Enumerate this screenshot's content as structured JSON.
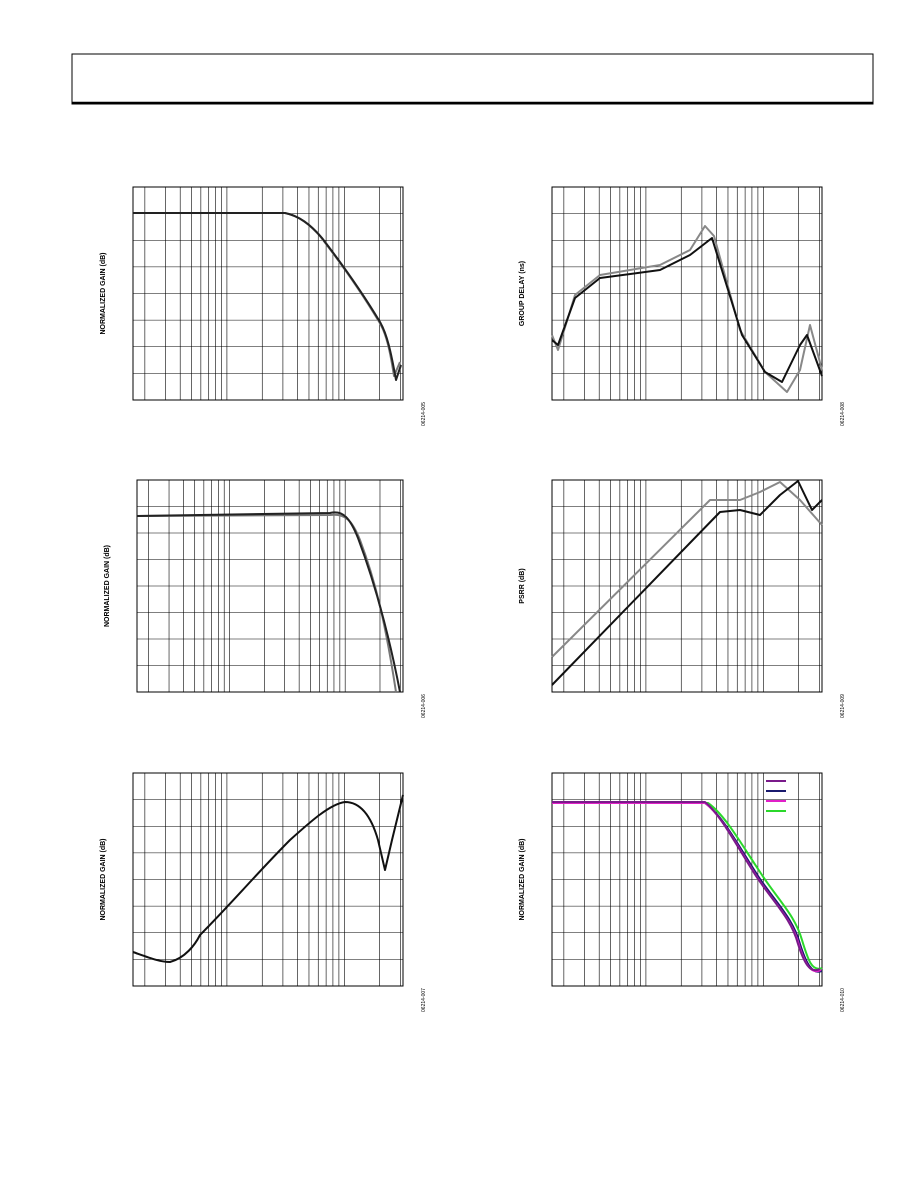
{
  "plots": [
    {
      "y_label": "NORMALIZED GAIN (dB)",
      "figure_code": "06214-005"
    },
    {
      "y_label": "GROUP DELAY (ns)",
      "figure_code": "06214-008"
    },
    {
      "y_label": "NORMALIZED GAIN (dB)",
      "figure_code": "06214-006"
    },
    {
      "y_label": "PSRR (dB)",
      "figure_code": "06214-009"
    },
    {
      "y_label": "NORMALIZED GAIN (dB)",
      "figure_code": "06214-007"
    },
    {
      "y_label": "NORMALIZED GAIN (dB)",
      "figure_code": "06214-010"
    }
  ]
}
